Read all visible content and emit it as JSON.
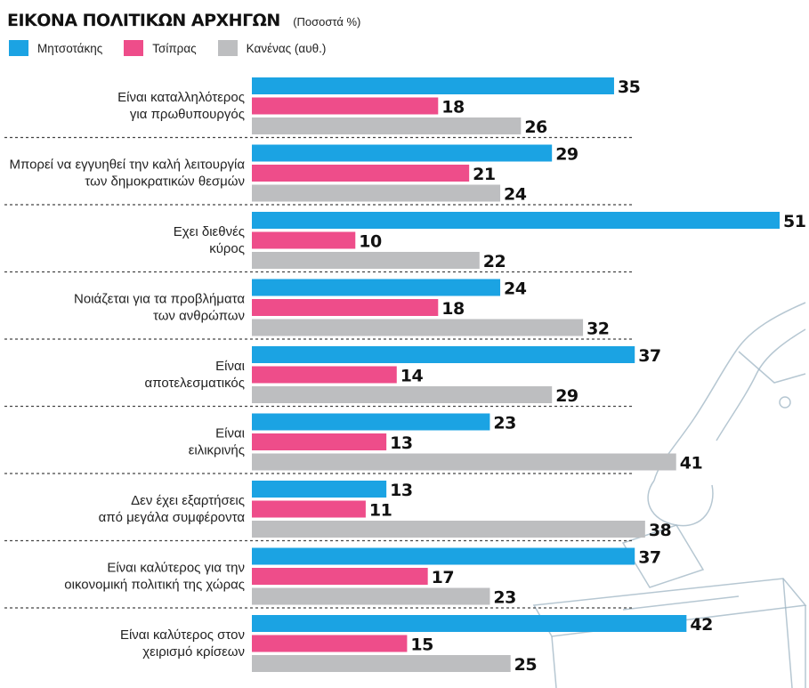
{
  "chart_data": {
    "type": "bar",
    "orientation": "horizontal",
    "title": "ΕΙΚΟΝΑ ΠΟΛΙΤΙΚΩΝ ΑΡΧΗΓΩΝ",
    "subtitle": "(Ποσοστά %)",
    "legend_position": "top-left",
    "grid": false,
    "xlim": [
      0,
      51
    ],
    "categories": [
      [
        "Είναι καταλληλότερος",
        "για πρωθυπουργός"
      ],
      [
        "Μπορεί να εγγυηθεί την καλή λειτουργία",
        "των δημοκρατικών θεσμών"
      ],
      [
        "Εχει διεθνές",
        "κύρος"
      ],
      [
        "Νοιάζεται για τα προβλήματα",
        "των ανθρώπων"
      ],
      [
        "Είναι",
        "αποτελεσματικός"
      ],
      [
        "Είναι",
        "ειλικρινής"
      ],
      [
        "Δεν έχει εξαρτήσεις",
        "από μεγάλα συμφέροντα"
      ],
      [
        "Είναι καλύτερος για την",
        "οικονομική πολιτική της χώρας"
      ],
      [
        "Είναι καλύτερος στον",
        "χειρισμό κρίσεων"
      ]
    ],
    "series": [
      {
        "name": "Μητσοτάκης",
        "color": "#1ba3e3",
        "values": [
          35,
          29,
          51,
          24,
          37,
          23,
          13,
          37,
          42
        ]
      },
      {
        "name": "Τσίπρας",
        "color": "#ee4d8a",
        "values": [
          18,
          21,
          10,
          18,
          14,
          13,
          11,
          17,
          15
        ]
      },
      {
        "name": "Κανένας (αυθ.)",
        "color": "#bdbec0",
        "values": [
          26,
          24,
          22,
          32,
          29,
          41,
          38,
          23,
          25
        ]
      }
    ]
  }
}
